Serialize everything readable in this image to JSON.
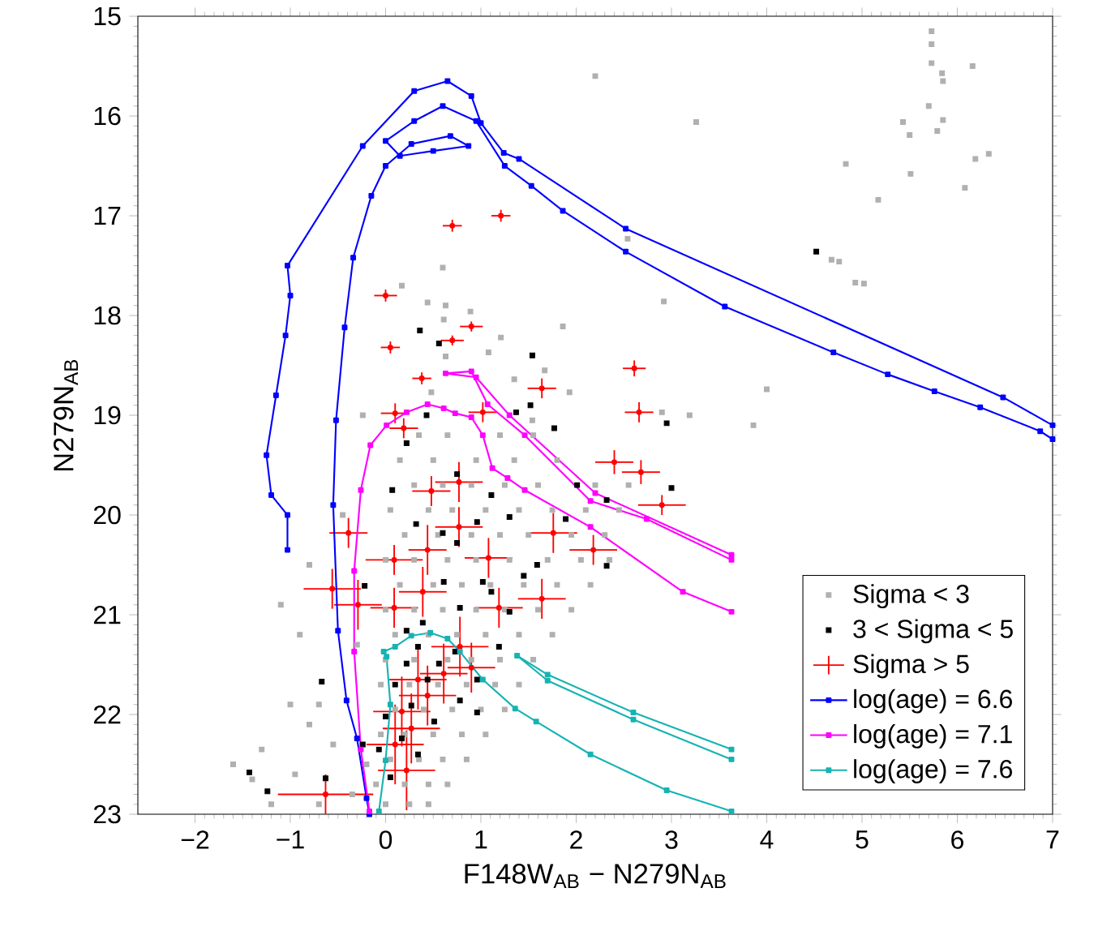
{
  "chart_data": {
    "type": "scatter",
    "xlabel": "F148W$_{AB}$ − N279N$_{AB}$",
    "ylabel": "N279N$_{AB}$",
    "xlim": [
      -2.6,
      7
    ],
    "ylim": [
      23,
      15
    ],
    "xticks": [
      {
        "value": -2,
        "label": "−2"
      },
      {
        "value": -1,
        "label": "−1"
      },
      0,
      1,
      2,
      3,
      4,
      5,
      6,
      7
    ],
    "yticks": [
      15,
      16,
      17,
      18,
      19,
      20,
      21,
      22,
      23
    ],
    "legend": "bottom right",
    "grid": false,
    "series": [
      {
        "name": "Sigma < 3",
        "marker": "square",
        "color": "#b0b0b0",
        "x": [
          5.73,
          5.73,
          5.73,
          5.84,
          5.85,
          6.16,
          3.26,
          5.7,
          5.43,
          5.5,
          5.79,
          5.85,
          4.83,
          5.51,
          6.19,
          6.33,
          6.08,
          5.17,
          4.68,
          4.76,
          4.93,
          5.02,
          2.92,
          4.0,
          3.86,
          3.19,
          2.9,
          2.54,
          2.2,
          0.6,
          0.17,
          0.44,
          0.63,
          0.61,
          0.89,
          1.21,
          1.86,
          0.63,
          1.08,
          1.35,
          1.67,
          1.93,
          0.48,
          -0.24,
          1.54,
          -1.6,
          -1.4,
          -1.2,
          -1.3,
          -1.0,
          -0.9,
          -1.1,
          -0.8,
          -0.3,
          -0.45,
          -0.2,
          -0.35,
          -0.7,
          -0.55,
          -0.8,
          -0.7,
          -0.95,
          0.35,
          0.65,
          1.2,
          1.55,
          0.15,
          0.5,
          0.95,
          1.35,
          1.8,
          0.3,
          0.6,
          0.9,
          1.25,
          1.6,
          2.2,
          2.55,
          0.05,
          0.45,
          0.7,
          1.05,
          1.4,
          1.75,
          2.1,
          2.45,
          0.2,
          0.55,
          0.9,
          1.2,
          1.5,
          1.95,
          2.3,
          0.0,
          0.3,
          0.65,
          0.95,
          1.3,
          1.7,
          2.05,
          2.35,
          0.15,
          0.5,
          0.8,
          1.1,
          1.45,
          1.8,
          2.15,
          0.0,
          0.3,
          0.6,
          0.95,
          1.25,
          1.6,
          1.95,
          0.1,
          0.45,
          0.75,
          1.05,
          1.4,
          1.75,
          0.0,
          0.3,
          0.65,
          0.9,
          1.2,
          1.55,
          -0.05,
          0.25,
          0.55,
          0.85,
          1.15,
          1.4,
          0.1,
          0.4,
          0.7,
          1.0,
          1.25,
          -0.05,
          0.2,
          0.5,
          0.8,
          1.05,
          0.05,
          0.35,
          0.6,
          0.85,
          -0.1,
          0.2,
          0.45,
          0.65,
          0.0,
          0.25,
          0.45
        ],
        "values": [
          15.15,
          15.28,
          15.47,
          15.57,
          15.65,
          15.5,
          16.06,
          15.9,
          16.06,
          16.19,
          16.15,
          16.04,
          16.48,
          16.58,
          16.43,
          16.38,
          16.72,
          16.84,
          17.44,
          17.46,
          17.67,
          17.68,
          17.86,
          18.74,
          19.1,
          19.0,
          18.97,
          17.23,
          15.6,
          17.52,
          17.7,
          17.87,
          17.9,
          18.04,
          17.96,
          18.22,
          18.11,
          18.41,
          18.37,
          18.64,
          18.55,
          18.77,
          18.77,
          19.0,
          19.05,
          22.5,
          22.65,
          22.9,
          22.35,
          21.9,
          21.2,
          20.9,
          20.5,
          21.3,
          20.0,
          22.5,
          22.8,
          21.9,
          22.3,
          22.1,
          22.9,
          22.6,
          19.2,
          19.2,
          19.2,
          19.2,
          19.45,
          19.45,
          19.45,
          19.45,
          19.45,
          19.7,
          19.7,
          19.7,
          19.7,
          19.7,
          19.7,
          19.7,
          19.95,
          19.95,
          19.95,
          19.95,
          19.95,
          19.95,
          19.95,
          19.95,
          20.2,
          20.2,
          20.2,
          20.2,
          20.2,
          20.2,
          20.2,
          20.45,
          20.45,
          20.45,
          20.45,
          20.45,
          20.45,
          20.45,
          20.45,
          20.7,
          20.7,
          20.7,
          20.7,
          20.7,
          20.7,
          20.7,
          20.95,
          20.95,
          20.95,
          20.95,
          20.95,
          20.95,
          20.95,
          21.2,
          21.2,
          21.2,
          21.2,
          21.2,
          21.2,
          21.45,
          21.45,
          21.45,
          21.45,
          21.45,
          21.45,
          21.7,
          21.7,
          21.7,
          21.7,
          21.7,
          21.7,
          21.95,
          21.95,
          21.95,
          21.95,
          21.95,
          22.2,
          22.2,
          22.2,
          22.2,
          22.2,
          22.45,
          22.45,
          22.45,
          22.45,
          22.7,
          22.7,
          22.7,
          22.7,
          22.9,
          22.9,
          22.9
        ]
      },
      {
        "name": "3 < Sigma < 5",
        "marker": "square",
        "color": "#000000",
        "x": [
          4.52,
          2.95,
          0.36,
          0.56,
          1.54,
          1.37,
          1.52,
          0.43,
          1.77,
          0.22,
          0.75,
          0.07,
          1.11,
          2.01,
          2.32,
          3.0,
          1.89,
          0.32,
          0.96,
          1.3,
          0.6,
          2.32,
          1.59,
          1.02,
          1.45,
          0.61,
          -0.22,
          0.78,
          1.3,
          0.22,
          0.34,
          0.73,
          1.19,
          0.22,
          0.56,
          0.96,
          0.1,
          0.44,
          0.78,
          0.27,
          0.96,
          0.0,
          0.51,
          0.17,
          -0.07,
          0.34,
          0.05,
          -0.67,
          -0.24,
          -0.63,
          -1.43,
          -1.24,
          0.39,
          1.11,
          0.75
        ],
        "values": [
          17.36,
          19.08,
          18.15,
          18.28,
          18.4,
          18.97,
          18.9,
          19.0,
          19.13,
          19.28,
          19.59,
          19.75,
          19.8,
          19.7,
          19.85,
          19.73,
          20.04,
          20.09,
          20.07,
          20.02,
          20.18,
          20.51,
          20.5,
          20.67,
          20.61,
          20.67,
          20.71,
          20.93,
          20.97,
          21.16,
          21.32,
          21.37,
          21.32,
          21.49,
          21.49,
          21.65,
          21.7,
          21.65,
          21.86,
          21.91,
          21.98,
          22.02,
          22.07,
          22.24,
          22.35,
          22.4,
          22.63,
          21.67,
          22.3,
          22.64,
          22.58,
          22.77,
          21.08,
          20.77,
          20.28
        ]
      },
      {
        "name": "Sigma > 5",
        "marker": "none",
        "color": "#ff0000",
        "x": [
          0.7,
          1.21,
          0.0,
          0.9,
          0.7,
          0.05,
          0.38,
          2.61,
          2.66,
          1.64,
          1.02,
          0.1,
          0.19,
          2.4,
          2.68,
          2.9,
          0.48,
          0.77,
          -0.39,
          0.77,
          1.76,
          2.18,
          0.44,
          0.09,
          1.08,
          -0.56,
          -0.29,
          0.39,
          0.09,
          1.19,
          1.64,
          0.78,
          0.34,
          0.61,
          0.9,
          0.44,
          0.17,
          0.27,
          0.1,
          0.22,
          -0.63
        ],
        "values": [
          17.1,
          17.0,
          17.8,
          18.11,
          18.25,
          18.32,
          18.63,
          18.53,
          18.97,
          18.73,
          18.97,
          18.98,
          19.13,
          19.47,
          19.57,
          19.9,
          19.76,
          19.67,
          20.18,
          20.12,
          20.18,
          20.35,
          20.35,
          20.45,
          20.43,
          20.74,
          20.9,
          20.77,
          20.93,
          20.93,
          20.84,
          21.32,
          21.65,
          21.59,
          21.53,
          21.81,
          21.97,
          22.14,
          22.3,
          22.56,
          22.8
        ],
        "xerrors": [
          0.1,
          0.1,
          0.12,
          0.12,
          0.12,
          0.1,
          0.1,
          0.12,
          0.15,
          0.15,
          0.15,
          0.15,
          0.15,
          0.2,
          0.2,
          0.25,
          0.2,
          0.25,
          0.2,
          0.25,
          0.25,
          0.25,
          0.2,
          0.3,
          0.25,
          0.3,
          0.25,
          0.25,
          0.25,
          0.25,
          0.25,
          0.3,
          0.3,
          0.25,
          0.25,
          0.3,
          0.3,
          0.3,
          0.3,
          0.3,
          0.5
        ],
        "errors": [
          0.06,
          0.06,
          0.06,
          0.05,
          0.05,
          0.06,
          0.06,
          0.08,
          0.1,
          0.1,
          0.1,
          0.1,
          0.1,
          0.12,
          0.12,
          0.1,
          0.15,
          0.2,
          0.15,
          0.2,
          0.2,
          0.15,
          0.25,
          0.15,
          0.2,
          0.2,
          0.25,
          0.25,
          0.2,
          0.2,
          0.2,
          0.3,
          0.3,
          0.3,
          0.25,
          0.3,
          0.35,
          0.35,
          0.4,
          0.4,
          0.2
        ]
      },
      {
        "name": "log(age) = 6.6",
        "type": "line",
        "marker": "square",
        "color": "#0000ff",
        "x": [
          -0.17,
          -0.2,
          -0.3,
          -0.41,
          -0.5,
          -0.55,
          -0.52,
          -0.43,
          -0.34,
          -0.15,
          0.0,
          0.27,
          0.68,
          0.87,
          0.5,
          0.15,
          0.0,
          0.3,
          0.6,
          0.95,
          1.25,
          1.53,
          1.86,
          2.52,
          3.56,
          4.7,
          5.27,
          5.76,
          6.24,
          6.87,
          7.0
        ],
        "values": [
          23.0,
          22.84,
          22.24,
          21.86,
          21.16,
          19.9,
          19.05,
          18.12,
          17.42,
          16.8,
          16.5,
          16.28,
          16.2,
          16.3,
          16.35,
          16.4,
          16.25,
          16.05,
          15.9,
          16.05,
          16.5,
          16.7,
          16.95,
          17.36,
          17.91,
          18.37,
          18.59,
          18.76,
          18.92,
          19.16,
          19.24
        ]
      },
      {
        "type": "line",
        "marker": "square",
        "color": "#0000ff",
        "x": [
          -1.03,
          -1.03,
          -1.2,
          -1.25,
          -1.15,
          -1.05,
          -1.0,
          -1.03,
          -0.24,
          0.3,
          0.65,
          0.9,
          1.0,
          1.24,
          1.4,
          2.52,
          6.48,
          7.0
        ],
        "values": [
          20.35,
          20.0,
          19.8,
          19.4,
          18.8,
          18.2,
          17.8,
          17.5,
          16.3,
          15.75,
          15.65,
          15.8,
          16.07,
          16.37,
          16.43,
          17.13,
          18.82,
          19.1
        ]
      },
      {
        "name": "log(age) = 7.1",
        "type": "line",
        "marker": "square",
        "color": "#ff00ff",
        "x": [
          -0.17,
          -0.26,
          -0.33,
          -0.33,
          -0.26,
          -0.16,
          0.01,
          0.22,
          0.44,
          0.61,
          0.73,
          0.9,
          1.02,
          1.12,
          1.28,
          1.46,
          2.15,
          3.12,
          3.63
        ],
        "values": [
          22.97,
          22.35,
          21.37,
          20.56,
          19.75,
          19.3,
          19.1,
          18.97,
          18.89,
          18.93,
          18.98,
          19.02,
          19.2,
          19.53,
          19.63,
          19.75,
          20.12,
          20.77,
          20.97
        ]
      },
      {
        "type": "line",
        "marker": "square",
        "color": "#ff00ff",
        "x": [
          3.63,
          2.2,
          1.3,
          0.95,
          0.63,
          0.9,
          1.07,
          1.46,
          2.15,
          2.74,
          3.63
        ],
        "values": [
          20.4,
          19.78,
          19.0,
          18.62,
          18.58,
          18.56,
          18.89,
          19.2,
          19.86,
          20.04,
          20.45
        ]
      },
      {
        "name": "log(age) = 7.6",
        "type": "line",
        "marker": "square",
        "color": "#17b3b3",
        "x": [
          -0.07,
          0.0,
          0.05,
          0.01,
          -0.02,
          0.1,
          0.27,
          0.47,
          0.65,
          0.78,
          1.02,
          1.36,
          1.58,
          2.15,
          2.95,
          3.63
        ],
        "values": [
          22.97,
          22.46,
          21.9,
          21.42,
          21.37,
          21.32,
          21.21,
          21.18,
          21.24,
          21.37,
          21.65,
          21.94,
          22.07,
          22.4,
          22.76,
          22.97
        ]
      },
      {
        "type": "line",
        "marker": "square",
        "color": "#17b3b3",
        "x": [
          3.63,
          2.6,
          1.7,
          1.38,
          1.7,
          2.6,
          3.63
        ],
        "values": [
          22.45,
          22.05,
          21.66,
          21.41,
          21.6,
          21.98,
          22.35
        ]
      }
    ]
  }
}
